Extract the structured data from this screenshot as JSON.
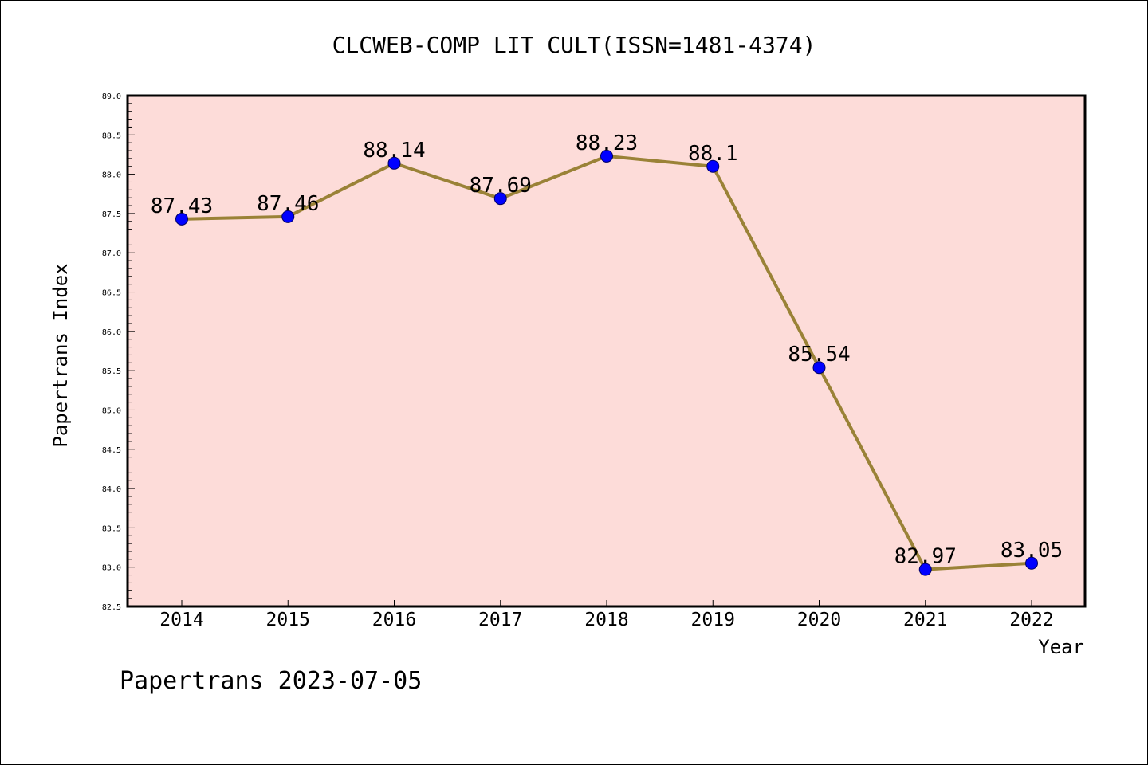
{
  "title": "CLCWEB-COMP LIT CULT(ISSN=1481-4374)",
  "footer": "Papertrans 2023-07-05",
  "colors": {
    "plot_background": "#fddcd9",
    "line": "#9a8237",
    "marker": "#0000ff",
    "frame": "#000000"
  },
  "chart_data": {
    "type": "line",
    "title": "CLCWEB-COMP LIT CULT(ISSN=1481-4374)",
    "xlabel": "Year",
    "ylabel": "Papertrans Index",
    "ylim": [
      82.5,
      89.0
    ],
    "y_ticks": [
      "82.5",
      "83.0",
      "83.5",
      "84.0",
      "84.5",
      "85.0",
      "85.5",
      "86.0",
      "86.5",
      "87.0",
      "87.5",
      "88.0",
      "88.5",
      "89.0"
    ],
    "categories": [
      "2014",
      "2015",
      "2016",
      "2017",
      "2018",
      "2019",
      "2020",
      "2021",
      "2022"
    ],
    "series": [
      {
        "values": [
          87.43,
          87.46,
          88.14,
          87.69,
          88.23,
          88.1,
          85.54,
          82.97,
          83.05
        ],
        "labels": [
          "87.43",
          "87.46",
          "88.14",
          "87.69",
          "88.23",
          "88.1",
          "85.54",
          "82.97",
          "83.05"
        ]
      }
    ],
    "grid": false,
    "legend": "none"
  }
}
